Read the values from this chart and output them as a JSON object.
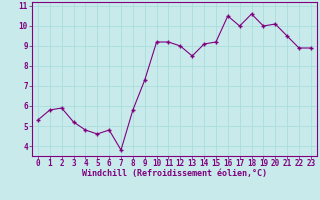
{
  "x": [
    0,
    1,
    2,
    3,
    4,
    5,
    6,
    7,
    8,
    9,
    10,
    11,
    12,
    13,
    14,
    15,
    16,
    17,
    18,
    19,
    20,
    21,
    22,
    23
  ],
  "y": [
    5.3,
    5.8,
    5.9,
    5.2,
    4.8,
    4.6,
    4.8,
    3.8,
    5.8,
    7.3,
    9.2,
    9.2,
    9.0,
    8.5,
    9.1,
    9.2,
    10.5,
    10.0,
    10.6,
    10.0,
    10.1,
    9.5,
    8.9,
    8.9
  ],
  "line_color": "#800080",
  "marker": "+",
  "marker_size": 3,
  "marker_lw": 1.0,
  "bg_color": "#c8eaea",
  "grid_color": "#aadddd",
  "xlabel": "Windchill (Refroidissement éolien,°C)",
  "xlim": [
    -0.5,
    23.5
  ],
  "ylim": [
    3.5,
    11.2
  ],
  "xticks": [
    0,
    1,
    2,
    3,
    4,
    5,
    6,
    7,
    8,
    9,
    10,
    11,
    12,
    13,
    14,
    15,
    16,
    17,
    18,
    19,
    20,
    21,
    22,
    23
  ],
  "yticks": [
    4,
    5,
    6,
    7,
    8,
    9,
    10,
    11
  ],
  "tick_color": "#800080",
  "label_color": "#800080",
  "label_fontsize": 6.0,
  "tick_fontsize": 5.5
}
